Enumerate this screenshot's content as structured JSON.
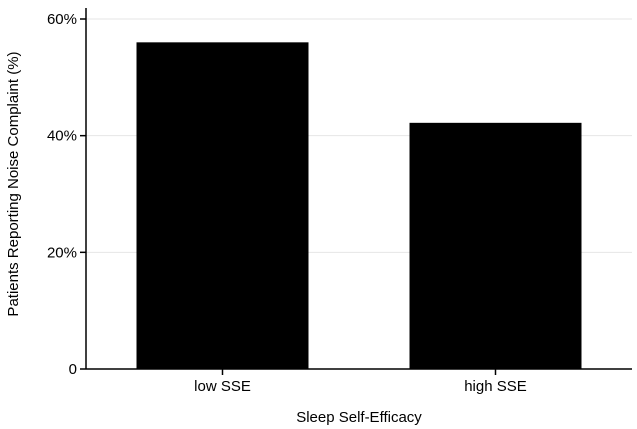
{
  "chart_data": {
    "type": "bar",
    "categories": [
      "low SSE",
      "high SSE"
    ],
    "values": [
      56,
      42.2
    ],
    "ylim": [
      0,
      60
    ],
    "yticks": [
      0,
      20,
      40,
      60
    ],
    "ytick_labels": [
      "0",
      "20%",
      "40%",
      "60%"
    ],
    "xlabel": "Sleep Self-Efficacy",
    "ylabel": "Patients Reporting Noise Complaint (%)",
    "bar_color": "#000000",
    "grid": "horizontal",
    "legend": "none"
  }
}
